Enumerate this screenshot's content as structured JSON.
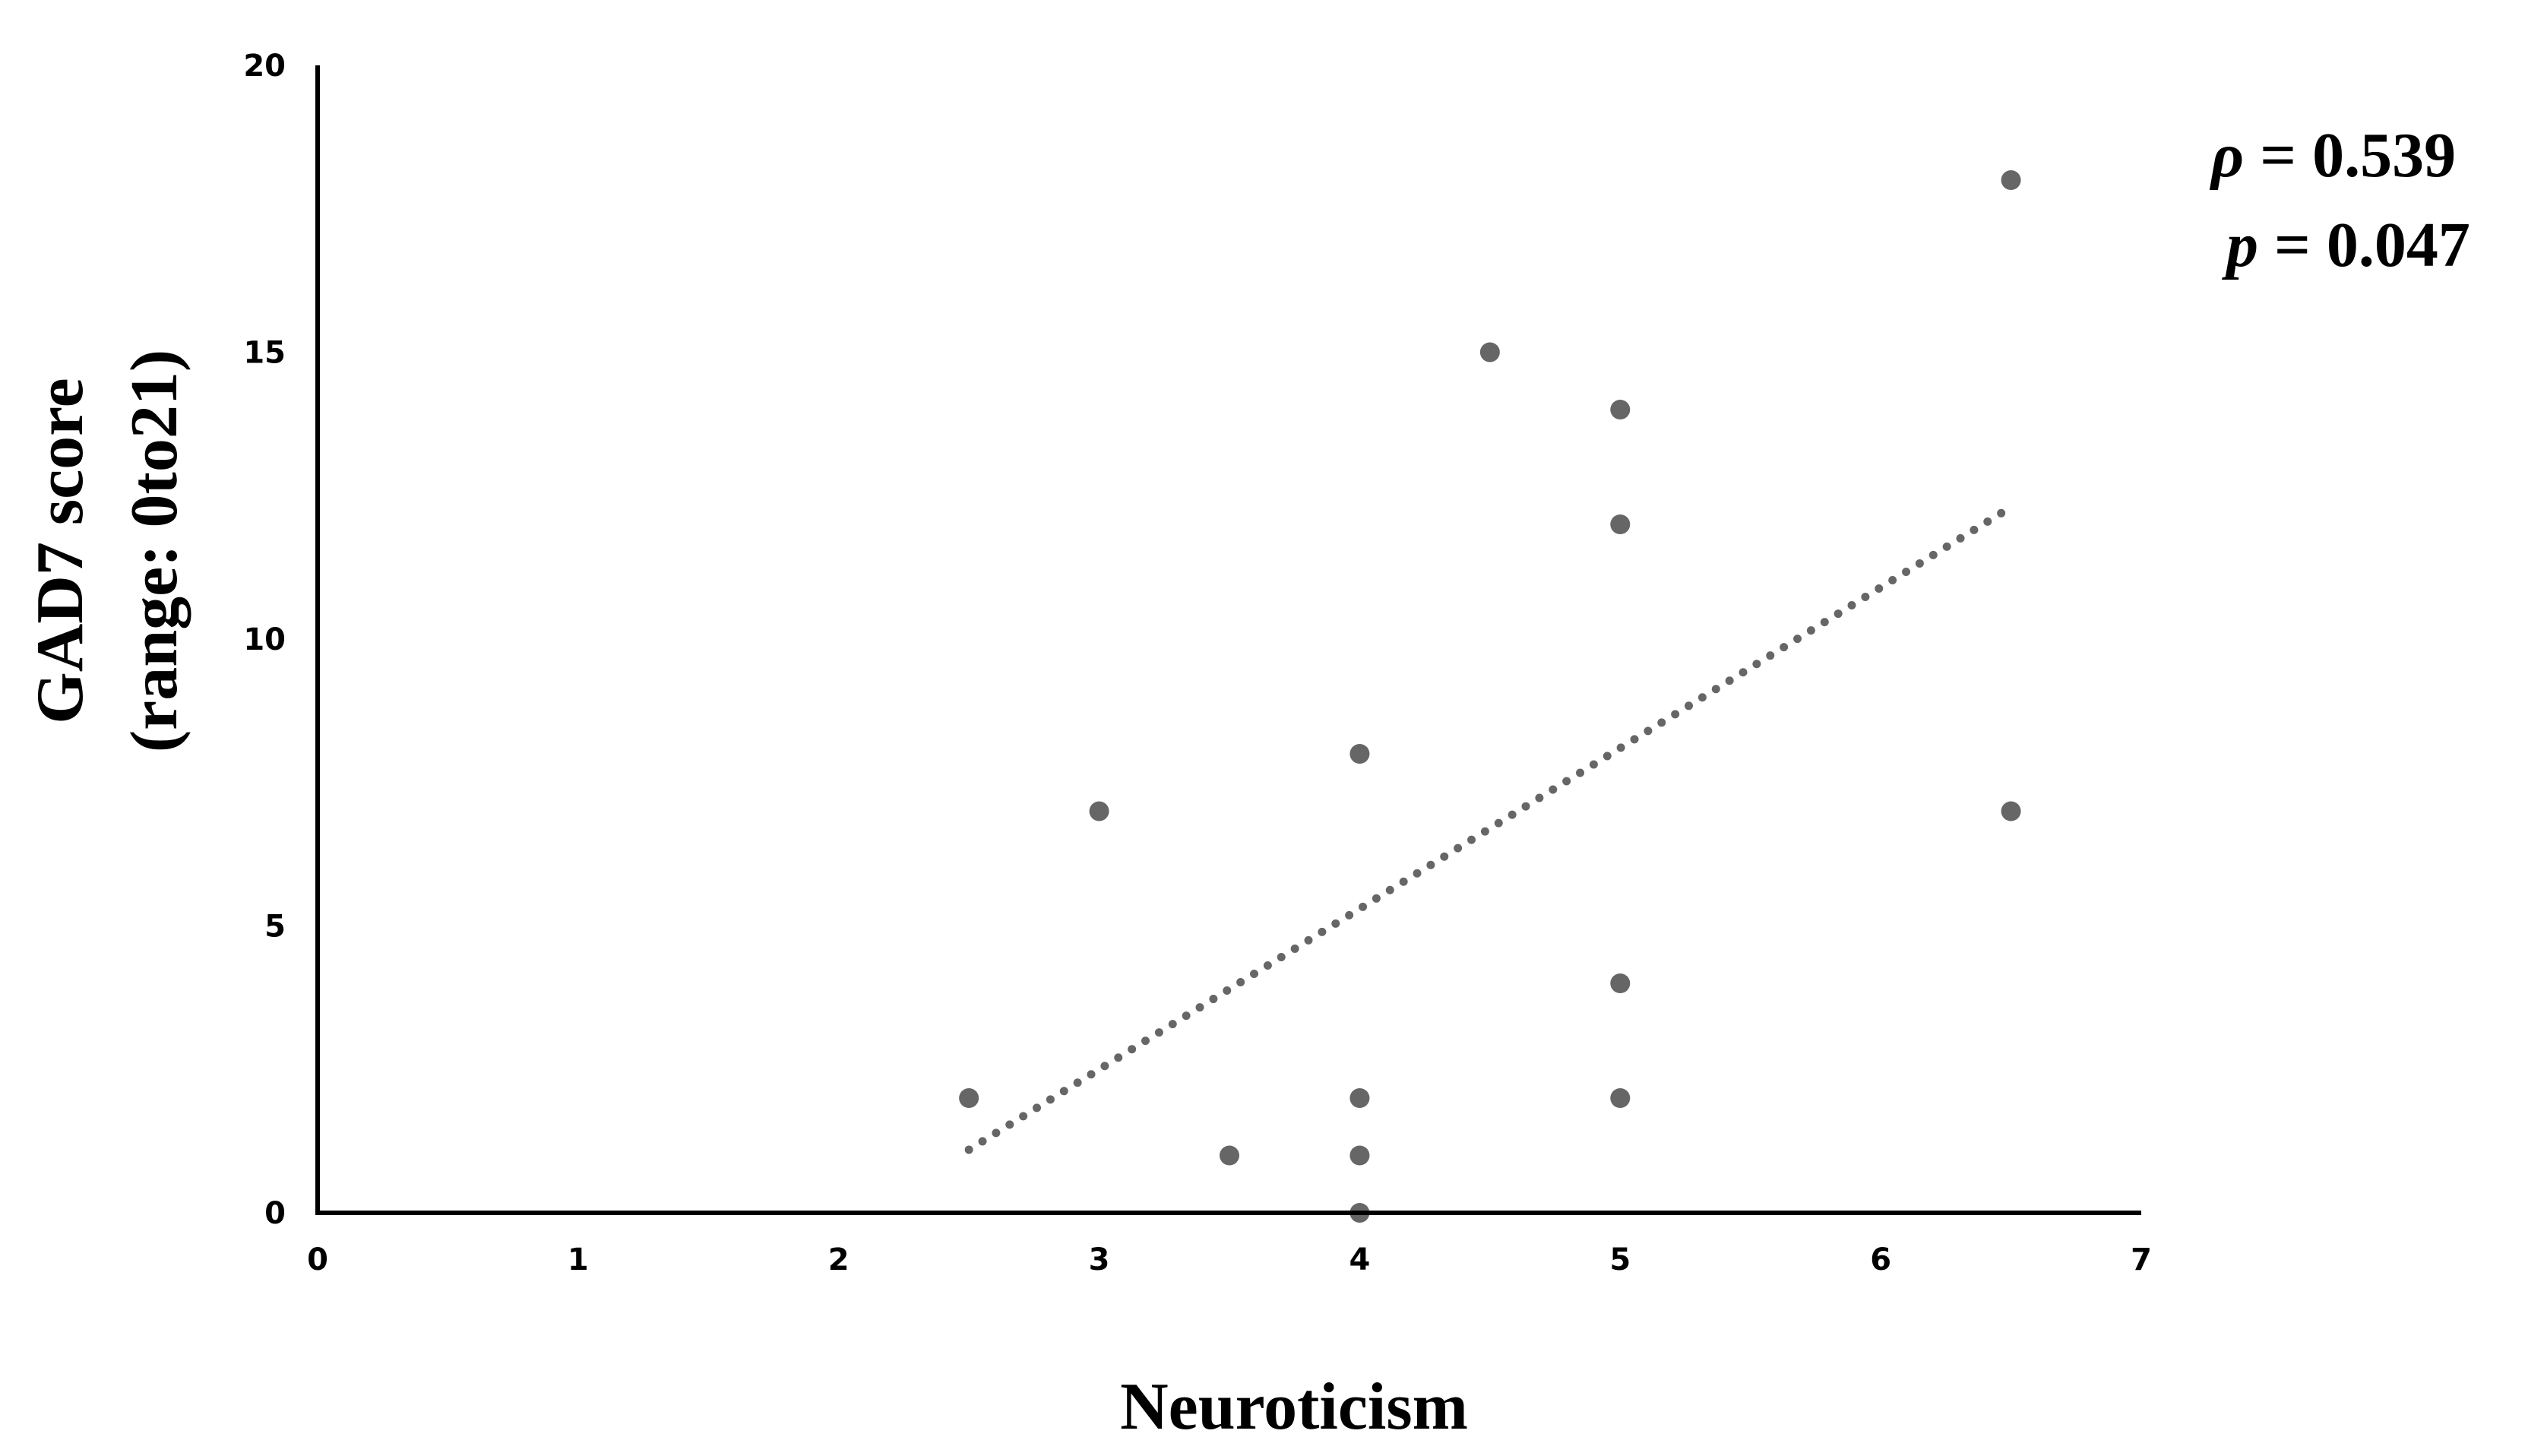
{
  "chart_data": {
    "type": "scatter",
    "title": "",
    "xlabel": "Neuroticism",
    "ylabel_lines": [
      "GAD7 score",
      "(range: 0to21)"
    ],
    "xlim": [
      0,
      7
    ],
    "ylim": [
      0,
      20
    ],
    "x_ticks": [
      "0",
      "1",
      "2",
      "3",
      "4",
      "5",
      "6",
      "7"
    ],
    "y_ticks": [
      "0",
      "5",
      "10",
      "15",
      "20"
    ],
    "grid": false,
    "series": [
      {
        "points": [
          {
            "x": 2.5,
            "y": 2
          },
          {
            "x": 3,
            "y": 7
          },
          {
            "x": 3.5,
            "y": 1
          },
          {
            "x": 4,
            "y": 8
          },
          {
            "x": 4,
            "y": 2
          },
          {
            "x": 4,
            "y": 1
          },
          {
            "x": 4,
            "y": 0
          },
          {
            "x": 4.5,
            "y": 15
          },
          {
            "x": 5,
            "y": 14
          },
          {
            "x": 5,
            "y": 12
          },
          {
            "x": 5,
            "y": 4
          },
          {
            "x": 5,
            "y": 2
          },
          {
            "x": 6.5,
            "y": 18
          },
          {
            "x": 6.5,
            "y": 7
          }
        ],
        "color": "#666666"
      }
    ],
    "trendline": {
      "style": "dotted",
      "color": "#666666",
      "x": [
        2.5,
        6.5
      ],
      "y": [
        1.1,
        12.3
      ]
    },
    "annotation": {
      "rho": {
        "symbol": "ρ",
        "text": " = 0.539"
      },
      "p": {
        "symbol": "p",
        "text": " = 0.047"
      }
    }
  }
}
